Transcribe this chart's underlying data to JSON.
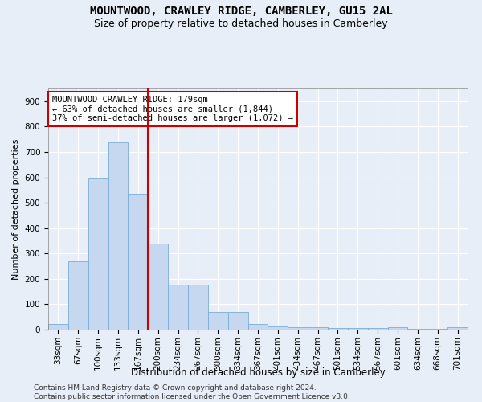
{
  "title": "MOUNTWOOD, CRAWLEY RIDGE, CAMBERLEY, GU15 2AL",
  "subtitle": "Size of property relative to detached houses in Camberley",
  "xlabel": "Distribution of detached houses by size in Camberley",
  "ylabel": "Number of detached properties",
  "bar_values": [
    22,
    270,
    595,
    738,
    535,
    338,
    178,
    178,
    70,
    70,
    22,
    13,
    10,
    10,
    7,
    5,
    5,
    8,
    2,
    2,
    8
  ],
  "bar_labels": [
    "33sqm",
    "67sqm",
    "100sqm",
    "133sqm",
    "167sqm",
    "200sqm",
    "234sqm",
    "267sqm",
    "300sqm",
    "334sqm",
    "367sqm",
    "401sqm",
    "434sqm",
    "467sqm",
    "501sqm",
    "534sqm",
    "567sqm",
    "601sqm",
    "634sqm",
    "668sqm",
    "701sqm"
  ],
  "bar_color": "#c5d8f0",
  "bar_edge_color": "#7aadd4",
  "vline_x": 4.5,
  "vline_color": "#cc0000",
  "annotation_text": "MOUNTWOOD CRAWLEY RIDGE: 179sqm\n← 63% of detached houses are smaller (1,844)\n37% of semi-detached houses are larger (1,072) →",
  "annotation_box_color": "#cc0000",
  "ylim": [
    0,
    950
  ],
  "yticks": [
    0,
    100,
    200,
    300,
    400,
    500,
    600,
    700,
    800,
    900
  ],
  "background_color": "#e8eef8",
  "plot_bg_color": "#e8eef8",
  "grid_color": "#ffffff",
  "footer_line1": "Contains HM Land Registry data © Crown copyright and database right 2024.",
  "footer_line2": "Contains public sector information licensed under the Open Government Licence v3.0.",
  "title_fontsize": 10,
  "subtitle_fontsize": 9,
  "xlabel_fontsize": 8.5,
  "ylabel_fontsize": 8,
  "tick_fontsize": 7.5,
  "footer_fontsize": 6.5,
  "annotation_fontsize": 7.5
}
